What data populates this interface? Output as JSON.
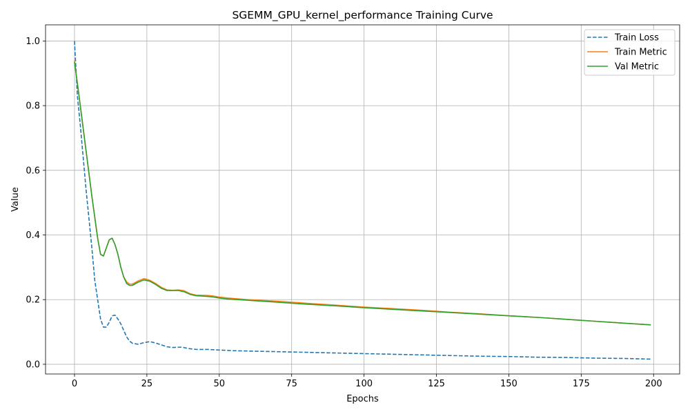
{
  "chart_data": {
    "type": "line",
    "title": "SGEMM_GPU_kernel_performance Training Curve",
    "xlabel": "Epochs",
    "ylabel": "Value",
    "xlim": [
      -10,
      209
    ],
    "ylim": [
      -0.03,
      1.05
    ],
    "xticks": [
      0,
      25,
      50,
      75,
      100,
      125,
      150,
      175,
      200
    ],
    "yticks": [
      0.0,
      0.2,
      0.4,
      0.6,
      0.8,
      1.0
    ],
    "xtick_labels": [
      "0",
      "25",
      "50",
      "75",
      "100",
      "125",
      "150",
      "175",
      "200"
    ],
    "ytick_labels": [
      "0.0",
      "0.2",
      "0.4",
      "0.6",
      "0.8",
      "1.0"
    ],
    "grid": true,
    "legend_position": "top-right",
    "series": [
      {
        "name": "Train Loss",
        "color": "#1f77b4",
        "style": "dashed",
        "points": [
          [
            0,
            1.0
          ],
          [
            1,
            0.83
          ],
          [
            2,
            0.74
          ],
          [
            3,
            0.64
          ],
          [
            4,
            0.54
          ],
          [
            5,
            0.45
          ],
          [
            6,
            0.36
          ],
          [
            7,
            0.26
          ],
          [
            8,
            0.2
          ],
          [
            9,
            0.14
          ],
          [
            10,
            0.115
          ],
          [
            11,
            0.115
          ],
          [
            12,
            0.13
          ],
          [
            13,
            0.15
          ],
          [
            14,
            0.152
          ],
          [
            15,
            0.14
          ],
          [
            16,
            0.125
          ],
          [
            17,
            0.105
          ],
          [
            18,
            0.085
          ],
          [
            19,
            0.072
          ],
          [
            20,
            0.065
          ],
          [
            22,
            0.062
          ],
          [
            24,
            0.067
          ],
          [
            26,
            0.07
          ],
          [
            28,
            0.066
          ],
          [
            30,
            0.06
          ],
          [
            32,
            0.054
          ],
          [
            34,
            0.052
          ],
          [
            37,
            0.053
          ],
          [
            40,
            0.048
          ],
          [
            42,
            0.046
          ],
          [
            46,
            0.046
          ],
          [
            50,
            0.044
          ],
          [
            55,
            0.042
          ],
          [
            60,
            0.041
          ],
          [
            70,
            0.039
          ],
          [
            80,
            0.037
          ],
          [
            90,
            0.035
          ],
          [
            100,
            0.033
          ],
          [
            110,
            0.031
          ],
          [
            120,
            0.029
          ],
          [
            130,
            0.027
          ],
          [
            140,
            0.025
          ],
          [
            150,
            0.024
          ],
          [
            160,
            0.022
          ],
          [
            170,
            0.021
          ],
          [
            180,
            0.019
          ],
          [
            190,
            0.018
          ],
          [
            199,
            0.016
          ]
        ]
      },
      {
        "name": "Train Metric",
        "color": "#ff7f0e",
        "style": "solid",
        "points": [
          [
            0,
            0.94
          ],
          [
            2,
            0.8
          ],
          [
            4,
            0.66
          ],
          [
            6,
            0.52
          ],
          [
            8,
            0.39
          ],
          [
            9,
            0.34
          ],
          [
            10,
            0.335
          ],
          [
            11,
            0.36
          ],
          [
            12,
            0.385
          ],
          [
            13,
            0.39
          ],
          [
            14,
            0.37
          ],
          [
            15,
            0.34
          ],
          [
            16,
            0.3
          ],
          [
            17,
            0.27
          ],
          [
            18,
            0.255
          ],
          [
            19,
            0.248
          ],
          [
            20,
            0.248
          ],
          [
            22,
            0.258
          ],
          [
            24,
            0.265
          ],
          [
            26,
            0.26
          ],
          [
            28,
            0.25
          ],
          [
            30,
            0.238
          ],
          [
            32,
            0.23
          ],
          [
            34,
            0.229
          ],
          [
            36,
            0.23
          ],
          [
            38,
            0.227
          ],
          [
            40,
            0.218
          ],
          [
            42,
            0.214
          ],
          [
            46,
            0.213
          ],
          [
            48,
            0.211
          ],
          [
            50,
            0.208
          ],
          [
            53,
            0.205
          ],
          [
            60,
            0.2
          ],
          [
            70,
            0.195
          ],
          [
            80,
            0.189
          ],
          [
            90,
            0.183
          ],
          [
            100,
            0.177
          ],
          [
            110,
            0.172
          ],
          [
            120,
            0.167
          ],
          [
            130,
            0.161
          ],
          [
            140,
            0.156
          ],
          [
            150,
            0.15
          ],
          [
            160,
            0.145
          ],
          [
            170,
            0.139
          ],
          [
            180,
            0.133
          ],
          [
            190,
            0.127
          ],
          [
            199,
            0.122
          ]
        ]
      },
      {
        "name": "Val Metric",
        "color": "#2ca02c",
        "style": "solid",
        "points": [
          [
            0,
            0.935
          ],
          [
            2,
            0.8
          ],
          [
            4,
            0.66
          ],
          [
            6,
            0.52
          ],
          [
            8,
            0.39
          ],
          [
            9,
            0.34
          ],
          [
            10,
            0.335
          ],
          [
            11,
            0.36
          ],
          [
            12,
            0.385
          ],
          [
            13,
            0.39
          ],
          [
            14,
            0.37
          ],
          [
            15,
            0.34
          ],
          [
            16,
            0.3
          ],
          [
            17,
            0.27
          ],
          [
            18,
            0.25
          ],
          [
            19,
            0.244
          ],
          [
            20,
            0.244
          ],
          [
            22,
            0.254
          ],
          [
            24,
            0.261
          ],
          [
            26,
            0.257
          ],
          [
            28,
            0.247
          ],
          [
            30,
            0.235
          ],
          [
            32,
            0.228
          ],
          [
            34,
            0.228
          ],
          [
            36,
            0.228
          ],
          [
            38,
            0.224
          ],
          [
            40,
            0.216
          ],
          [
            42,
            0.212
          ],
          [
            46,
            0.21
          ],
          [
            48,
            0.208
          ],
          [
            50,
            0.205
          ],
          [
            53,
            0.202
          ],
          [
            60,
            0.198
          ],
          [
            70,
            0.192
          ],
          [
            80,
            0.186
          ],
          [
            90,
            0.181
          ],
          [
            100,
            0.175
          ],
          [
            110,
            0.17
          ],
          [
            120,
            0.165
          ],
          [
            130,
            0.16
          ],
          [
            140,
            0.155
          ],
          [
            150,
            0.15
          ],
          [
            160,
            0.145
          ],
          [
            170,
            0.139
          ],
          [
            180,
            0.133
          ],
          [
            190,
            0.127
          ],
          [
            199,
            0.122
          ]
        ]
      }
    ]
  }
}
